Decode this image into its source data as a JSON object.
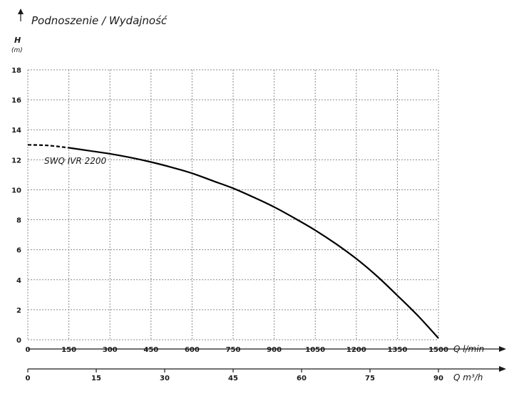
{
  "chart_data": {
    "type": "line",
    "title": "Podnoszenie / Wydajność",
    "ylabel": "H",
    "yunit": "(m)",
    "ylim": [
      0,
      18
    ],
    "yticks": [
      0,
      2,
      4,
      6,
      8,
      10,
      12,
      14,
      16,
      18
    ],
    "xlim": [
      0,
      1500
    ],
    "xticks": [
      0,
      150,
      300,
      450,
      600,
      750,
      900,
      1050,
      1200,
      1350,
      1500
    ],
    "xlabel": "Q l/min",
    "x2lim": [
      0,
      90
    ],
    "x2ticks": [
      0,
      15,
      30,
      45,
      60,
      75,
      90
    ],
    "x2label": "Q m³/h",
    "grid": true,
    "series": [
      {
        "name": "SWQ IVR 2200",
        "dashed_until_x": 150,
        "x": [
          0,
          75,
          150,
          225,
          300,
          375,
          450,
          525,
          600,
          675,
          750,
          825,
          900,
          975,
          1050,
          1125,
          1200,
          1275,
          1350,
          1425,
          1500
        ],
        "y": [
          13.0,
          12.95,
          12.8,
          12.6,
          12.4,
          12.15,
          11.85,
          11.5,
          11.1,
          10.6,
          10.1,
          9.5,
          8.85,
          8.1,
          7.3,
          6.4,
          5.4,
          4.25,
          2.95,
          1.6,
          0.1
        ]
      }
    ]
  }
}
